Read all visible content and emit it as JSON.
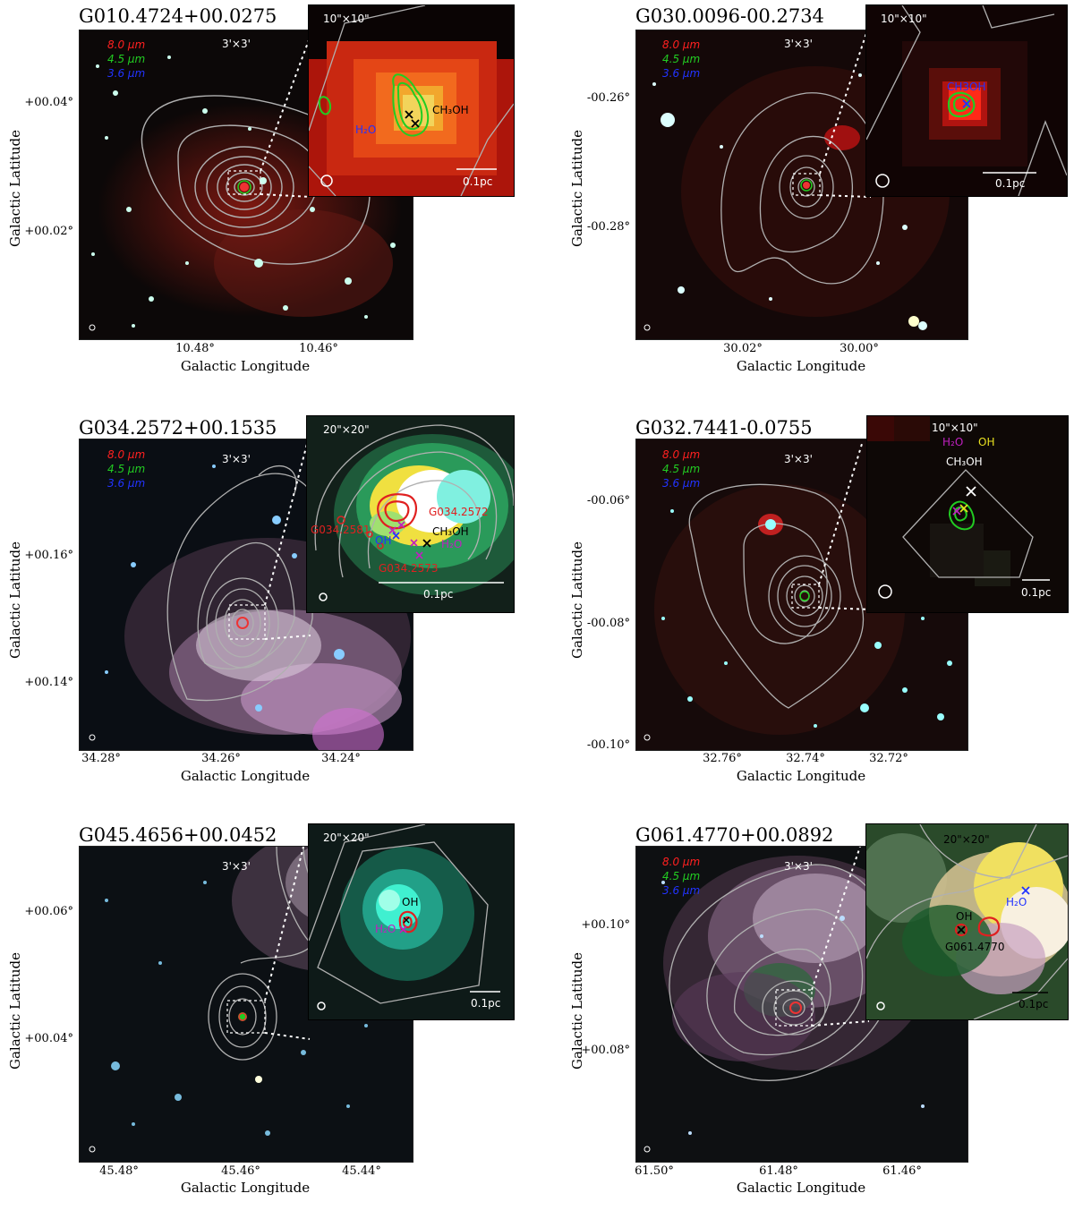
{
  "axis_labels": {
    "x": "Galactic Longitude",
    "y": "Galactic Latitude"
  },
  "legend": {
    "red": "8.0 μm",
    "green": "4.5 μm",
    "blue": "3.6 μm"
  },
  "panels": [
    {
      "title": "G010.4724+00.0275",
      "field_size": "3'×3'",
      "inset_size": "10\"×10\"",
      "scale_bar": "0.1pc",
      "xticks": [
        "10.48°",
        "10.46°"
      ],
      "yticks": [
        "+00.04°",
        "+00.02°"
      ],
      "labels": {
        "a": "CH₃OH",
        "b": "H₂O"
      }
    },
    {
      "title": "G030.0096-00.2734",
      "field_size": "3'×3'",
      "inset_size": "10\"×10\"",
      "scale_bar": "0.1pc",
      "xticks": [
        "30.02°",
        "30.00°"
      ],
      "yticks": [
        "-00.26°",
        "-00.28°"
      ],
      "labels": {
        "a": "CH3OH"
      }
    },
    {
      "title": "G034.2572+00.1535",
      "field_size": "3'×3'",
      "inset_size": "20\"×20\"",
      "scale_bar": "0.1pc",
      "xticks": [
        "34.28°",
        "34.26°",
        "34.24°"
      ],
      "yticks": [
        "+00.16°",
        "+00.14°"
      ],
      "labels": {
        "a": "G034.2572",
        "b": "G034.2581",
        "c": "OH",
        "d": "CH₃OH",
        "e": "H₂O",
        "f": "G034.2573"
      }
    },
    {
      "title": "G032.7441-0.0755",
      "field_size": "3'×3'",
      "inset_size": "10\"×10\"",
      "scale_bar": "0.1pc",
      "xticks": [
        "32.76°",
        "32.74°",
        "32.72°"
      ],
      "yticks": [
        "-00.06°",
        "-00.08°",
        "-00.10°"
      ],
      "labels": {
        "a": "H₂O",
        "b": "OH",
        "c": "CH₃OH"
      }
    },
    {
      "title": "G045.4656+00.0452",
      "field_size": "3'×3'",
      "inset_size": "20\"×20\"",
      "scale_bar": "0.1pc",
      "xticks": [
        "45.48°",
        "45.46°",
        "45.44°"
      ],
      "yticks": [
        "+00.06°",
        "+00.04°"
      ],
      "labels": {
        "a": "OH",
        "b": "H₂O"
      }
    },
    {
      "title": "G061.4770+00.0892",
      "field_size": "3'×3'",
      "inset_size": "20\"×20\"",
      "scale_bar": "0.1pc",
      "xticks": [
        "61.50°",
        "61.48°",
        "61.46°"
      ],
      "yticks": [
        "+00.10°",
        "+00.08°"
      ],
      "labels": {
        "a": "H₂O",
        "b": "OH",
        "c": "G061.4770"
      }
    }
  ],
  "colors": {
    "red_legend": "#ff2020",
    "green_legend": "#22cc22",
    "blue_legend": "#2233ff",
    "contour": "#b0b0b0"
  }
}
